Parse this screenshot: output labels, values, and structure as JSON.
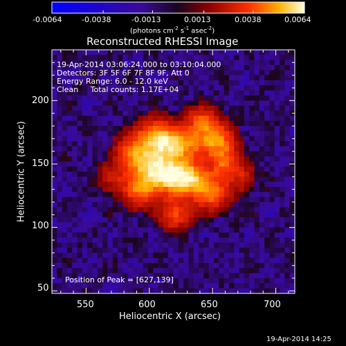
{
  "colorbar": {
    "ticks": [
      "-0.0064",
      "-0.0038",
      "-0.0013",
      "0.0013",
      "0.0038",
      "0.0064"
    ],
    "units_text": "(photons cm",
    "units_exp1": "-2",
    "units_s": " s",
    "units_exp2": "-1",
    "units_asec": " asec",
    "units_exp3": "-2",
    "units_close": ")",
    "vmin": -0.0064,
    "vmax": 0.0064
  },
  "chart_data": {
    "type": "heatmap",
    "title": "Reconstructed RHESSI Image",
    "xlabel": "Heliocentric X (arcsec)",
    "ylabel": "Heliocentric Y (arcsec)",
    "xlim": [
      523,
      715
    ],
    "ylim": [
      48,
      240
    ],
    "x_ticks": [
      "550",
      "600",
      "650",
      "700"
    ],
    "y_ticks": [
      "50",
      "100",
      "150",
      "200"
    ],
    "peak_position": [
      627,
      139
    ],
    "annotations": [
      "19-Apr-2014 03:06:24.000 to 03:10:04.000",
      "Detectors: 3F 5F 6F 7F 8F 9F, Att 0",
      "Energy Range: 6.0 - 12.0 keV",
      "Clean     Total counts: 1.17E+04"
    ],
    "peak_label": "Position of Peak = [627,139]",
    "colors": {
      "background": "#000000",
      "axes": "#ffffff",
      "colormap": [
        "#0000ff",
        "#3a0a9a",
        "#2a0a3a",
        "#8a0000",
        "#ff3000",
        "#ffb000",
        "#ffffe0"
      ]
    }
  },
  "footer": {
    "timestamp": "19-Apr-2014 14:25"
  }
}
